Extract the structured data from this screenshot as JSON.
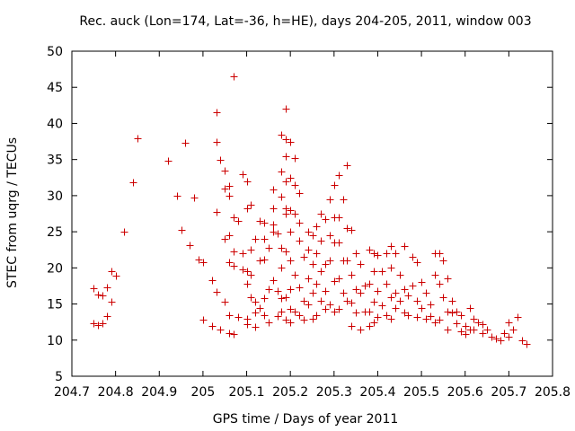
{
  "chart_data": {
    "type": "scatter",
    "title": "Rec. auck (Lon=174, Lat=-36, h=HE), days 204-205, 2011, window 003",
    "xlabel": "GPS time / Days of year 2011",
    "ylabel": "STEC from uqrg / TECUs",
    "xlim": [
      204.7,
      205.8
    ],
    "ylim": [
      5,
      50
    ],
    "xticks": [
      "204.7",
      "204.8",
      "204.9",
      "205",
      "205.1",
      "205.2",
      "205.3",
      "205.4",
      "205.5",
      "205.6",
      "205.7",
      "205.8"
    ],
    "yticks": [
      "5",
      "10",
      "15",
      "20",
      "25",
      "30",
      "35",
      "40",
      "45",
      "50"
    ],
    "grid": false,
    "marker": "plus",
    "color": "#cc0000",
    "series": [
      {
        "name": "STEC",
        "points": [
          [
            204.75,
            17.2
          ],
          [
            204.75,
            12.3
          ],
          [
            204.76,
            16.3
          ],
          [
            204.76,
            12.1
          ],
          [
            204.77,
            16.2
          ],
          [
            204.77,
            12.3
          ],
          [
            204.78,
            17.3
          ],
          [
            204.78,
            13.3
          ],
          [
            204.79,
            19.6
          ],
          [
            204.79,
            15.3
          ],
          [
            204.8,
            18.9
          ],
          [
            204.82,
            25.0
          ],
          [
            204.84,
            31.8
          ],
          [
            204.85,
            38.0
          ],
          [
            204.92,
            34.8
          ],
          [
            204.94,
            30.0
          ],
          [
            204.95,
            25.3
          ],
          [
            204.96,
            37.3
          ],
          [
            204.97,
            23.2
          ],
          [
            204.98,
            29.7
          ],
          [
            204.99,
            21.2
          ],
          [
            205.0,
            20.8
          ],
          [
            205.0,
            12.8
          ],
          [
            205.02,
            18.3
          ],
          [
            205.02,
            12.0
          ],
          [
            205.03,
            41.5
          ],
          [
            205.03,
            37.5
          ],
          [
            205.03,
            27.8
          ],
          [
            205.03,
            16.7
          ],
          [
            205.04,
            11.5
          ],
          [
            205.04,
            35.0
          ],
          [
            205.05,
            33.5
          ],
          [
            205.05,
            31.0
          ],
          [
            205.05,
            24.0
          ],
          [
            205.05,
            15.3
          ],
          [
            205.06,
            31.3
          ],
          [
            205.06,
            30.0
          ],
          [
            205.06,
            24.5
          ],
          [
            205.06,
            20.8
          ],
          [
            205.06,
            11.0
          ],
          [
            205.06,
            13.5
          ],
          [
            205.07,
            46.5
          ],
          [
            205.07,
            27.0
          ],
          [
            205.07,
            22.3
          ],
          [
            205.07,
            20.3
          ],
          [
            205.07,
            10.8
          ],
          [
            205.08,
            26.5
          ],
          [
            205.08,
            13.2
          ],
          [
            205.09,
            33.0
          ],
          [
            205.09,
            22.0
          ],
          [
            205.09,
            19.8
          ],
          [
            205.1,
            32.0
          ],
          [
            205.1,
            28.2
          ],
          [
            205.1,
            19.5
          ],
          [
            205.1,
            17.8
          ],
          [
            205.1,
            13.0
          ],
          [
            205.1,
            12.2
          ],
          [
            205.11,
            28.8
          ],
          [
            205.11,
            22.5
          ],
          [
            205.11,
            19.0
          ],
          [
            205.11,
            16.0
          ],
          [
            205.12,
            24.0
          ],
          [
            205.12,
            15.3
          ],
          [
            205.12,
            13.8
          ],
          [
            205.12,
            11.8
          ],
          [
            205.13,
            26.5
          ],
          [
            205.13,
            21.0
          ],
          [
            205.13,
            14.5
          ],
          [
            205.14,
            24.0
          ],
          [
            205.14,
            26.2
          ],
          [
            205.14,
            21.2
          ],
          [
            205.14,
            15.8
          ],
          [
            205.14,
            13.5
          ],
          [
            205.15,
            22.8
          ],
          [
            205.15,
            17.0
          ],
          [
            205.15,
            12.5
          ],
          [
            205.16,
            30.8
          ],
          [
            205.16,
            28.3
          ],
          [
            205.16,
            26.0
          ],
          [
            205.16,
            25.0
          ],
          [
            205.16,
            18.3
          ],
          [
            205.17,
            24.8
          ],
          [
            205.17,
            16.8
          ],
          [
            205.17,
            13.3
          ],
          [
            205.18,
            38.5
          ],
          [
            205.18,
            33.3
          ],
          [
            205.18,
            29.8
          ],
          [
            205.18,
            22.8
          ],
          [
            205.18,
            20.0
          ],
          [
            205.18,
            15.8
          ],
          [
            205.18,
            14.0
          ],
          [
            205.19,
            42.0
          ],
          [
            205.19,
            37.8
          ],
          [
            205.19,
            35.5
          ],
          [
            205.19,
            32.0
          ],
          [
            205.19,
            28.3
          ],
          [
            205.19,
            27.5
          ],
          [
            205.19,
            22.3
          ],
          [
            205.19,
            16.0
          ],
          [
            205.19,
            12.8
          ],
          [
            205.2,
            37.5
          ],
          [
            205.2,
            32.5
          ],
          [
            205.2,
            28.0
          ],
          [
            205.2,
            25.0
          ],
          [
            205.2,
            21.0
          ],
          [
            205.2,
            17.0
          ],
          [
            205.2,
            14.3
          ],
          [
            205.2,
            12.5
          ],
          [
            205.21,
            35.2
          ],
          [
            205.21,
            31.5
          ],
          [
            205.21,
            27.5
          ],
          [
            205.21,
            19.0
          ],
          [
            205.21,
            14.0
          ],
          [
            205.22,
            30.3
          ],
          [
            205.22,
            26.2
          ],
          [
            205.22,
            23.8
          ],
          [
            205.22,
            17.3
          ],
          [
            205.22,
            13.5
          ],
          [
            205.23,
            21.5
          ],
          [
            205.23,
            15.5
          ],
          [
            205.23,
            12.8
          ],
          [
            205.24,
            25.0
          ],
          [
            205.24,
            22.5
          ],
          [
            205.24,
            18.5
          ],
          [
            205.24,
            15.0
          ],
          [
            205.25,
            24.5
          ],
          [
            205.25,
            20.5
          ],
          [
            205.25,
            16.5
          ],
          [
            205.25,
            13.0
          ],
          [
            205.26,
            25.8
          ],
          [
            205.26,
            22.0
          ],
          [
            205.26,
            17.8
          ],
          [
            205.26,
            13.5
          ],
          [
            205.27,
            27.5
          ],
          [
            205.27,
            23.8
          ],
          [
            205.27,
            19.5
          ],
          [
            205.27,
            15.5
          ],
          [
            205.28,
            26.8
          ],
          [
            205.28,
            20.5
          ],
          [
            205.28,
            16.8
          ],
          [
            205.28,
            14.3
          ],
          [
            205.29,
            29.5
          ],
          [
            205.29,
            24.5
          ],
          [
            205.29,
            21.0
          ],
          [
            205.29,
            15.0
          ],
          [
            205.3,
            31.5
          ],
          [
            205.3,
            27.0
          ],
          [
            205.3,
            23.5
          ],
          [
            205.3,
            18.2
          ],
          [
            205.3,
            14.0
          ],
          [
            205.31,
            32.8
          ],
          [
            205.31,
            27.0
          ],
          [
            205.31,
            23.5
          ],
          [
            205.31,
            18.5
          ],
          [
            205.31,
            14.3
          ],
          [
            205.32,
            29.5
          ],
          [
            205.32,
            21.0
          ],
          [
            205.32,
            16.5
          ],
          [
            205.33,
            34.2
          ],
          [
            205.33,
            25.5
          ],
          [
            205.33,
            21.0
          ],
          [
            205.33,
            15.5
          ],
          [
            205.34,
            25.3
          ],
          [
            205.34,
            19.0
          ],
          [
            205.34,
            15.2
          ],
          [
            205.34,
            12.0
          ],
          [
            205.35,
            22.0
          ],
          [
            205.35,
            17.0
          ],
          [
            205.35,
            13.8
          ],
          [
            205.36,
            20.5
          ],
          [
            205.36,
            16.5
          ],
          [
            205.36,
            11.5
          ],
          [
            205.37,
            17.5
          ],
          [
            205.37,
            14.0
          ],
          [
            205.38,
            22.5
          ],
          [
            205.38,
            17.8
          ],
          [
            205.38,
            14.0
          ],
          [
            205.38,
            12.0
          ],
          [
            205.39,
            22.0
          ],
          [
            205.39,
            19.5
          ],
          [
            205.39,
            15.3
          ],
          [
            205.39,
            12.5
          ],
          [
            205.4,
            21.8
          ],
          [
            205.4,
            16.8
          ],
          [
            205.4,
            13.2
          ],
          [
            205.41,
            19.5
          ],
          [
            205.41,
            14.8
          ],
          [
            205.42,
            22.0
          ],
          [
            205.42,
            17.8
          ],
          [
            205.42,
            13.5
          ],
          [
            205.43,
            23.0
          ],
          [
            205.43,
            20.0
          ],
          [
            205.43,
            16.0
          ],
          [
            205.43,
            13.0
          ],
          [
            205.44,
            22.0
          ],
          [
            205.44,
            16.5
          ],
          [
            205.44,
            14.5
          ],
          [
            205.45,
            19.0
          ],
          [
            205.45,
            15.5
          ],
          [
            205.46,
            23.0
          ],
          [
            205.46,
            17.0
          ],
          [
            205.46,
            13.8
          ],
          [
            205.47,
            16.2
          ],
          [
            205.47,
            13.5
          ],
          [
            205.48,
            21.5
          ],
          [
            205.48,
            17.5
          ],
          [
            205.49,
            20.8
          ],
          [
            205.49,
            15.5
          ],
          [
            205.49,
            13.2
          ],
          [
            205.5,
            18.0
          ],
          [
            205.5,
            14.5
          ],
          [
            205.51,
            16.5
          ],
          [
            205.51,
            13.0
          ],
          [
            205.52,
            15.0
          ],
          [
            205.52,
            13.3
          ],
          [
            205.53,
            22.0
          ],
          [
            205.53,
            19.0
          ],
          [
            205.53,
            12.5
          ],
          [
            205.54,
            22.0
          ],
          [
            205.54,
            17.8
          ],
          [
            205.54,
            12.8
          ],
          [
            205.55,
            21.0
          ],
          [
            205.55,
            16.0
          ],
          [
            205.56,
            18.5
          ],
          [
            205.56,
            14.0
          ],
          [
            205.56,
            11.5
          ],
          [
            205.57,
            15.5
          ],
          [
            205.57,
            13.8
          ],
          [
            205.58,
            14.0
          ],
          [
            205.58,
            12.3
          ],
          [
            205.59,
            13.5
          ],
          [
            205.59,
            11.2
          ],
          [
            205.6,
            12.0
          ],
          [
            205.6,
            10.8
          ],
          [
            205.61,
            11.5
          ],
          [
            205.61,
            14.5
          ],
          [
            205.62,
            13.0
          ],
          [
            205.62,
            11.5
          ],
          [
            205.63,
            12.5
          ],
          [
            205.64,
            11.0
          ],
          [
            205.64,
            12.2
          ],
          [
            205.65,
            11.5
          ],
          [
            205.66,
            10.5
          ],
          [
            205.67,
            10.2
          ],
          [
            205.68,
            10.0
          ],
          [
            205.69,
            11.0
          ],
          [
            205.7,
            12.5
          ],
          [
            205.7,
            10.5
          ],
          [
            205.71,
            11.5
          ],
          [
            205.72,
            13.2
          ],
          [
            205.73,
            10.0
          ],
          [
            205.74,
            9.5
          ]
        ]
      }
    ]
  }
}
